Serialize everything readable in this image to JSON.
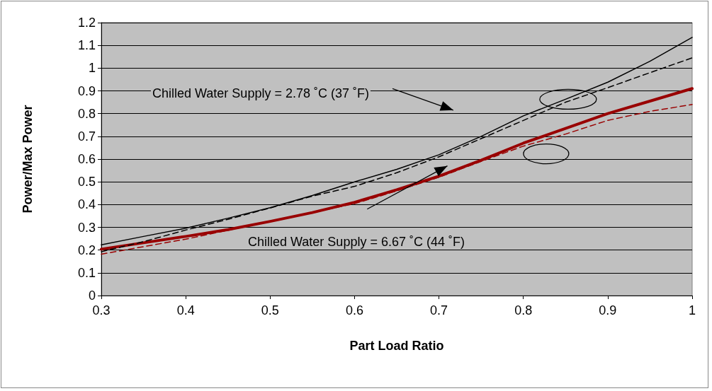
{
  "chart_data": {
    "type": "line",
    "xlabel": "Part Load Ratio",
    "ylabel": "Power/Max Power",
    "x": [
      0.3,
      0.35,
      0.4,
      0.45,
      0.5,
      0.55,
      0.6,
      0.65,
      0.7,
      0.75,
      0.8,
      0.85,
      0.9,
      0.95,
      1.0
    ],
    "series": [
      {
        "color": "#000000",
        "line_style": "solid",
        "values": [
          0.223,
          0.26,
          0.296,
          0.34,
          0.386,
          0.44,
          0.5,
          0.555,
          0.619,
          0.7,
          0.79,
          0.863,
          0.938,
          1.03,
          1.135
        ]
      },
      {
        "color": "#000000",
        "line_style": "dashed",
        "values": [
          0.193,
          0.237,
          0.288,
          0.335,
          0.385,
          0.437,
          0.48,
          0.54,
          0.61,
          0.69,
          0.77,
          0.85,
          0.914,
          0.98,
          1.045
        ]
      },
      {
        "color": "#990000",
        "line_style": "solid",
        "values": [
          0.204,
          0.232,
          0.26,
          0.29,
          0.326,
          0.365,
          0.41,
          0.465,
          0.525,
          0.595,
          0.67,
          0.735,
          0.8,
          0.855,
          0.91
        ]
      },
      {
        "color": "#990000",
        "line_style": "dashed",
        "values": [
          0.182,
          0.215,
          0.248,
          0.287,
          0.326,
          0.365,
          0.404,
          0.46,
          0.52,
          0.59,
          0.657,
          0.71,
          0.77,
          0.81,
          0.84
        ]
      }
    ],
    "xlim": [
      0.3,
      1
    ],
    "xticks": [
      0.3,
      0.4,
      0.5,
      0.6,
      0.7,
      0.8,
      0.9,
      1
    ],
    "ylim": [
      0,
      1.2
    ],
    "yticks": [
      0,
      0.1,
      0.2,
      0.3,
      0.4,
      0.5,
      0.6,
      0.7,
      0.8,
      0.9,
      1,
      1.1,
      1.2
    ],
    "grid": "y",
    "marker": "none",
    "annotations": [
      "Chilled Water Supply = 2.78 ˚C (37 ˚F)",
      "Chilled Water Supply = 6.67 ˚C (44 ˚F)"
    ]
  }
}
